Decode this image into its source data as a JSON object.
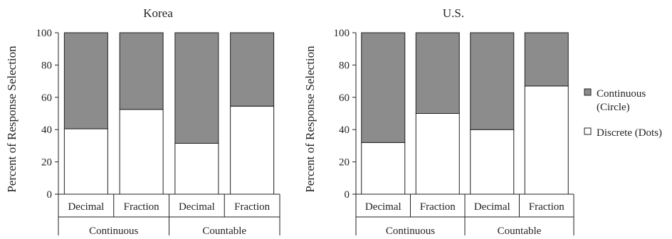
{
  "chart_data": [
    {
      "type": "bar",
      "stacked": true,
      "title": "Korea",
      "ylabel": "Percent of Response Selection",
      "ylim": [
        0,
        100
      ],
      "yticks": [
        0,
        20,
        40,
        60,
        80,
        100
      ],
      "categories": [
        "Decimal",
        "Fraction",
        "Decimal",
        "Fraction"
      ],
      "groups": [
        {
          "label": "Continuous",
          "categories": [
            "Decimal",
            "Fraction"
          ]
        },
        {
          "label": "Countable",
          "categories": [
            "Decimal",
            "Fraction"
          ]
        }
      ],
      "series": [
        {
          "name": "Discrete (Dots)",
          "color": "#ffffff",
          "values": [
            40.5,
            52.5,
            31.5,
            54.5
          ]
        },
        {
          "name": "Continuous (Circle)",
          "color": "#8c8c8c",
          "values": [
            59.5,
            47.5,
            68.5,
            45.5
          ]
        }
      ]
    },
    {
      "type": "bar",
      "stacked": true,
      "title": "U.S.",
      "ylabel": "Percent of Response Selection",
      "ylim": [
        0,
        100
      ],
      "yticks": [
        0,
        20,
        40,
        60,
        80,
        100
      ],
      "categories": [
        "Decimal",
        "Fraction",
        "Decimal",
        "Fraction"
      ],
      "groups": [
        {
          "label": "Continuous",
          "categories": [
            "Decimal",
            "Fraction"
          ]
        },
        {
          "label": "Countable",
          "categories": [
            "Decimal",
            "Fraction"
          ]
        }
      ],
      "series": [
        {
          "name": "Discrete (Dots)",
          "color": "#ffffff",
          "values": [
            32,
            50,
            40,
            67
          ]
        },
        {
          "name": "Continuous (Circle)",
          "color": "#8c8c8c",
          "values": [
            68,
            50,
            60,
            33
          ]
        }
      ]
    }
  ],
  "legend": {
    "position": "right",
    "items": [
      {
        "lines": [
          "Continuous",
          "(Circle)"
        ],
        "color": "#8c8c8c"
      },
      {
        "lines": [
          "Discrete (Dots)"
        ],
        "color": "#ffffff"
      }
    ]
  }
}
